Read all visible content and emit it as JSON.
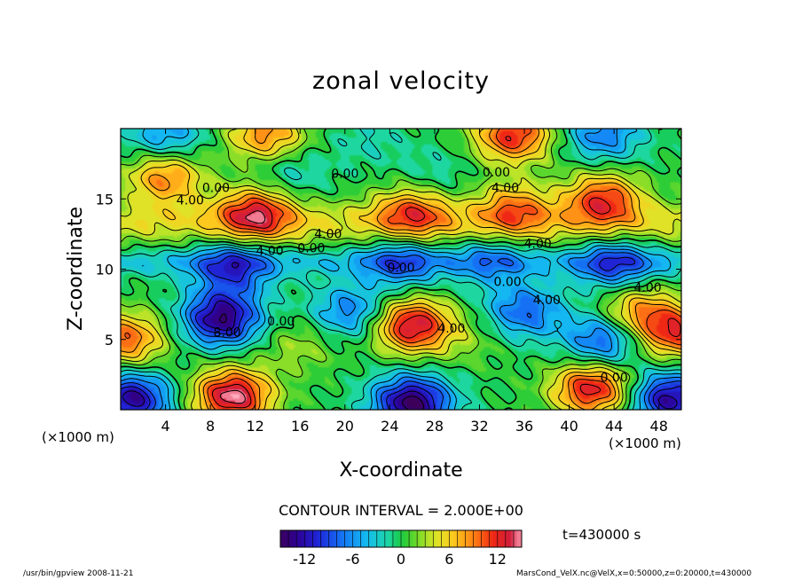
{
  "chart_data": {
    "type": "heatmap",
    "title": "zonal velocity",
    "xlabel": "X-coordinate",
    "ylabel": "Z-coordinate",
    "x_unit": "(×1000 m)",
    "z_unit": "(×1000 m)",
    "xlim": [
      0,
      50
    ],
    "ylim": [
      0,
      20
    ],
    "x_ticks": [
      4,
      8,
      12,
      16,
      20,
      24,
      28,
      32,
      36,
      40,
      44,
      48
    ],
    "y_ticks": [
      5,
      10,
      15
    ],
    "contour_interval": "CONTOUR INTERVAL = 2.000E+00",
    "colorbar": {
      "min": -15,
      "max": 15,
      "ticks": [
        -12,
        -6,
        0,
        6,
        12
      ]
    },
    "contour_labels": [
      {
        "text": "0.00",
        "x": 20,
        "y": 16.5
      },
      {
        "text": "0.00",
        "x": 33.5,
        "y": 16.6
      },
      {
        "text": "4.00",
        "x": 34.3,
        "y": 15.5
      },
      {
        "text": "0.00",
        "x": 8.5,
        "y": 15.5
      },
      {
        "text": "4.00",
        "x": 6.2,
        "y": 14.6
      },
      {
        "text": "4.00",
        "x": 18.5,
        "y": 12.2
      },
      {
        "text": "4.00",
        "x": 13.3,
        "y": 11.0
      },
      {
        "text": "0.00",
        "x": 17.0,
        "y": 11.2
      },
      {
        "text": "4.00",
        "x": 37.2,
        "y": 11.5
      },
      {
        "text": "0.00",
        "x": 25.0,
        "y": 9.8
      },
      {
        "text": "0.00",
        "x": 34.5,
        "y": 8.8
      },
      {
        "text": "4.00",
        "x": 47.0,
        "y": 8.4
      },
      {
        "text": "4.00",
        "x": 38.0,
        "y": 7.5
      },
      {
        "text": "0.00",
        "x": 14.3,
        "y": 6.0
      },
      {
        "text": "8.00",
        "x": 9.5,
        "y": 5.2
      },
      {
        "text": "4.00",
        "x": 29.5,
        "y": 5.5
      },
      {
        "text": "0.00",
        "x": 44.0,
        "y": 2.0
      }
    ],
    "features": [
      {
        "x": 9,
        "y": 6.5,
        "value": -14
      },
      {
        "x": 26,
        "y": 6,
        "value": 14
      },
      {
        "x": 10,
        "y": 1,
        "value": 15
      },
      {
        "x": 26,
        "y": 0.5,
        "value": -15
      },
      {
        "x": 42,
        "y": 1.5,
        "value": 13
      },
      {
        "x": 1,
        "y": 0.8,
        "value": -13
      },
      {
        "x": 49,
        "y": 0.8,
        "value": -13
      },
      {
        "x": 20.5,
        "y": 7,
        "value": -7
      },
      {
        "x": 36,
        "y": 7,
        "value": -8
      },
      {
        "x": 43,
        "y": 5,
        "value": -9
      },
      {
        "x": 0.5,
        "y": 5,
        "value": 10
      },
      {
        "x": 49.5,
        "y": 5.5,
        "value": 11
      },
      {
        "x": 16,
        "y": 4.5,
        "value": 3
      },
      {
        "x": 31,
        "y": 5,
        "value": 2
      },
      {
        "x": 46,
        "y": 7,
        "value": 8
      },
      {
        "x": 10,
        "y": 10,
        "value": -9
      },
      {
        "x": 25,
        "y": 10.5,
        "value": -7
      },
      {
        "x": 44,
        "y": 10.3,
        "value": -8
      },
      {
        "x": 33,
        "y": 10.6,
        "value": -5
      },
      {
        "x": 12,
        "y": 14,
        "value": 11
      },
      {
        "x": 26,
        "y": 14,
        "value": 9
      },
      {
        "x": 43,
        "y": 15,
        "value": 11
      },
      {
        "x": 4,
        "y": 16.5,
        "value": 9
      },
      {
        "x": 35,
        "y": 14.3,
        "value": 8
      },
      {
        "x": 35,
        "y": 19.5,
        "value": 12
      },
      {
        "x": 13,
        "y": 19.5,
        "value": 9
      },
      {
        "x": 43,
        "y": 19.5,
        "value": -7
      },
      {
        "x": 22,
        "y": 19.2,
        "value": -2
      },
      {
        "x": 4,
        "y": 19.5,
        "value": -6
      },
      {
        "x": 15,
        "y": 17,
        "value": -3
      },
      {
        "x": 28,
        "y": 16.8,
        "value": -2
      }
    ]
  },
  "time_label": "t=430000 s",
  "footer": {
    "left": "/usr/bin/gpview   2008-11-21",
    "right": "MarsCond_VelX.nc@VelX,x=0:50000,z=0:20000,t=430000"
  }
}
